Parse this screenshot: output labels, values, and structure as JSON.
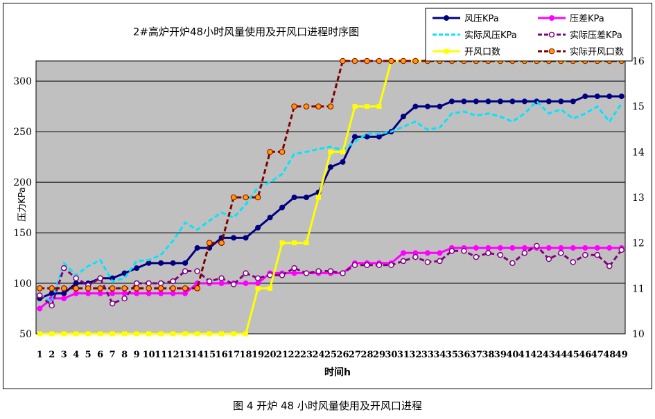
{
  "figure": {
    "caption": "图 4   开炉 48 小时风量使用及开风口进程"
  },
  "chart_data": {
    "type": "line",
    "title": "2#高炉开炉48小时风量使用及开风口进程时序图",
    "xlabel": "时间h",
    "ylabel_left": "压力KPa",
    "ylabel_right": "",
    "x": [
      1,
      2,
      3,
      4,
      5,
      6,
      7,
      8,
      9,
      10,
      11,
      12,
      13,
      14,
      15,
      16,
      17,
      18,
      19,
      20,
      21,
      22,
      23,
      24,
      25,
      26,
      27,
      28,
      29,
      30,
      31,
      32,
      33,
      34,
      35,
      36,
      37,
      38,
      39,
      40,
      41,
      42,
      43,
      44,
      45,
      46,
      47,
      48,
      49
    ],
    "ylim_left": [
      50,
      320
    ],
    "yticks_left": [
      50,
      100,
      150,
      200,
      250,
      300
    ],
    "ylim_right": [
      10,
      16
    ],
    "yticks_right": [
      10,
      11,
      12,
      13,
      14,
      15,
      16
    ],
    "grid": true,
    "legend_position": "top-right",
    "background": "#c0c0c0",
    "series": [
      {
        "name": "风压KPa",
        "axis": "left",
        "color": "#000080",
        "style": "solid",
        "marker": "dot",
        "values": [
          85,
          90,
          90,
          100,
          100,
          105,
          105,
          110,
          115,
          120,
          120,
          120,
          120,
          135,
          135,
          145,
          145,
          145,
          155,
          165,
          175,
          185,
          185,
          190,
          215,
          220,
          245,
          245,
          245,
          250,
          265,
          275,
          275,
          275,
          280,
          280,
          280,
          280,
          280,
          280,
          280,
          280,
          280,
          280,
          280,
          285,
          285,
          285,
          285
        ]
      },
      {
        "name": "压差KPa",
        "axis": "left",
        "color": "#ff00ff",
        "style": "solid",
        "marker": "dot",
        "values": [
          75,
          85,
          85,
          90,
          90,
          90,
          90,
          90,
          90,
          90,
          90,
          90,
          90,
          100,
          100,
          100,
          100,
          100,
          100,
          110,
          110,
          110,
          110,
          110,
          110,
          110,
          120,
          120,
          120,
          120,
          130,
          130,
          130,
          130,
          135,
          135,
          135,
          135,
          135,
          135,
          135,
          135,
          135,
          135,
          135,
          135,
          135,
          135,
          135
        ]
      },
      {
        "name": "实际风压KPa",
        "axis": "left",
        "color": "#00e5ff",
        "style": "dashed",
        "marker": "none",
        "values": [
          88,
          82,
          120,
          108,
          117,
          123,
          102,
          105,
          122,
          123,
          128,
          142,
          160,
          153,
          162,
          170,
          165,
          178,
          195,
          200,
          208,
          228,
          230,
          233,
          235,
          232,
          240,
          248,
          248,
          250,
          255,
          260,
          252,
          254,
          268,
          270,
          266,
          268,
          265,
          260,
          268,
          280,
          268,
          272,
          263,
          268,
          275,
          260,
          278
        ]
      },
      {
        "name": "实际压差KPa",
        "axis": "left",
        "color": "#800080",
        "style": "dashed",
        "marker": "circle",
        "values": [
          88,
          78,
          115,
          105,
          98,
          105,
          80,
          85,
          100,
          100,
          100,
          102,
          112,
          112,
          102,
          105,
          99,
          110,
          105,
          108,
          108,
          115,
          110,
          112,
          112,
          110,
          118,
          118,
          118,
          118,
          122,
          126,
          121,
          122,
          132,
          132,
          126,
          130,
          128,
          120,
          130,
          137,
          124,
          130,
          121,
          128,
          128,
          117,
          133
        ]
      },
      {
        "name": "开风口数",
        "axis": "right",
        "color": "#ffff00",
        "style": "solid",
        "marker": "square",
        "values": [
          10,
          10,
          10,
          10,
          10,
          10,
          10,
          10,
          10,
          10,
          10,
          10,
          10,
          10,
          10,
          10,
          10,
          10,
          11,
          11,
          12,
          12,
          12,
          13,
          14,
          14,
          15,
          15,
          15,
          16,
          16,
          16,
          16,
          16,
          16,
          16,
          16,
          16,
          16,
          16,
          16,
          16,
          16,
          16,
          16,
          16,
          16,
          16,
          16
        ]
      },
      {
        "name": "实际开风口数",
        "axis": "right",
        "color": "#800000",
        "style": "dashed",
        "marker": "orange-dot",
        "values": [
          11,
          11,
          11,
          11,
          11,
          11,
          11,
          11,
          11,
          11,
          11,
          11,
          11,
          11,
          12,
          12,
          13,
          13,
          13,
          14,
          14,
          15,
          15,
          15,
          15,
          16,
          16,
          16,
          16,
          16,
          16,
          16,
          16,
          16,
          16,
          16,
          16,
          16,
          16,
          16,
          16,
          16,
          16,
          16,
          16,
          16,
          16,
          16,
          16
        ]
      }
    ]
  }
}
